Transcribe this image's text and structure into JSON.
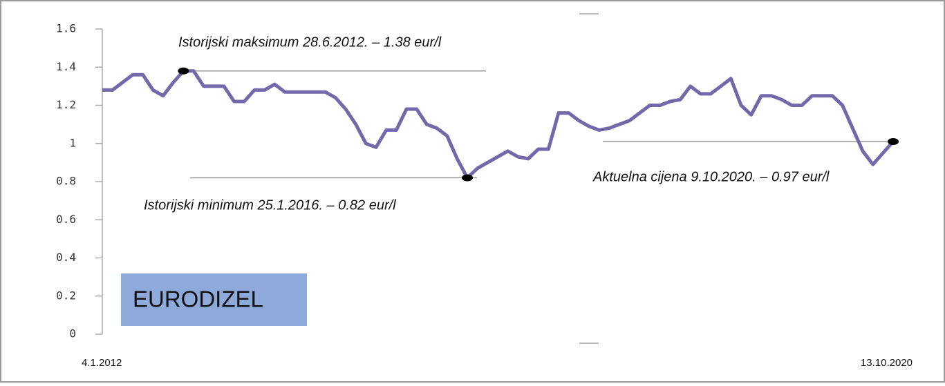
{
  "chart_data": {
    "type": "line",
    "label": "EURODIZEL",
    "categories": [
      "4.1.2012",
      null,
      null,
      null,
      null,
      null,
      null,
      null,
      null,
      null,
      null,
      null,
      null,
      null,
      null,
      null,
      null,
      null,
      null,
      null,
      null,
      null,
      null,
      null,
      null,
      null,
      null,
      null,
      null,
      null,
      null,
      null,
      null,
      null,
      null,
      null,
      null,
      null,
      null,
      null,
      null,
      null,
      null,
      null,
      null,
      null,
      null,
      null,
      null,
      null,
      null,
      null,
      null,
      null,
      null,
      null,
      null,
      null,
      null,
      null,
      null,
      null,
      null,
      null,
      null,
      null,
      null,
      null,
      null,
      null,
      null,
      null,
      null,
      null,
      null,
      null,
      null,
      null,
      "13.10.2020"
    ],
    "values": [
      1.28,
      1.28,
      1.32,
      1.36,
      1.36,
      1.28,
      1.25,
      1.32,
      1.38,
      1.38,
      1.3,
      1.3,
      1.3,
      1.22,
      1.22,
      1.28,
      1.28,
      1.31,
      1.27,
      1.27,
      1.27,
      1.27,
      1.27,
      1.24,
      1.18,
      1.1,
      1.0,
      0.98,
      1.07,
      1.07,
      1.18,
      1.18,
      1.1,
      1.08,
      1.04,
      0.92,
      0.82,
      0.87,
      0.9,
      0.93,
      0.96,
      0.93,
      0.92,
      0.97,
      0.97,
      1.16,
      1.16,
      1.12,
      1.09,
      1.07,
      1.08,
      1.1,
      1.12,
      1.16,
      1.2,
      1.2,
      1.22,
      1.23,
      1.3,
      1.26,
      1.26,
      1.3,
      1.34,
      1.2,
      1.15,
      1.25,
      1.25,
      1.23,
      1.2,
      1.2,
      1.25,
      1.25,
      1.25,
      1.2,
      1.08,
      0.96,
      0.89,
      0.95,
      1.01
    ],
    "color": "#7468ab",
    "ylim": [
      0,
      1.6
    ],
    "yticks": [
      0,
      0.2,
      0.4,
      0.6,
      0.8,
      1,
      1.2,
      1.4,
      1.6
    ],
    "annotations": [
      {
        "text": "Istorijski maksimum 28.6.2012. – 1.38 eur/l"
      },
      {
        "text": "Istorijski minimum 25.1.2016. – 0.82 eur/l"
      },
      {
        "text": "Aktuelna cijena 9.10.2020. – 0.97 eur/l"
      }
    ]
  }
}
